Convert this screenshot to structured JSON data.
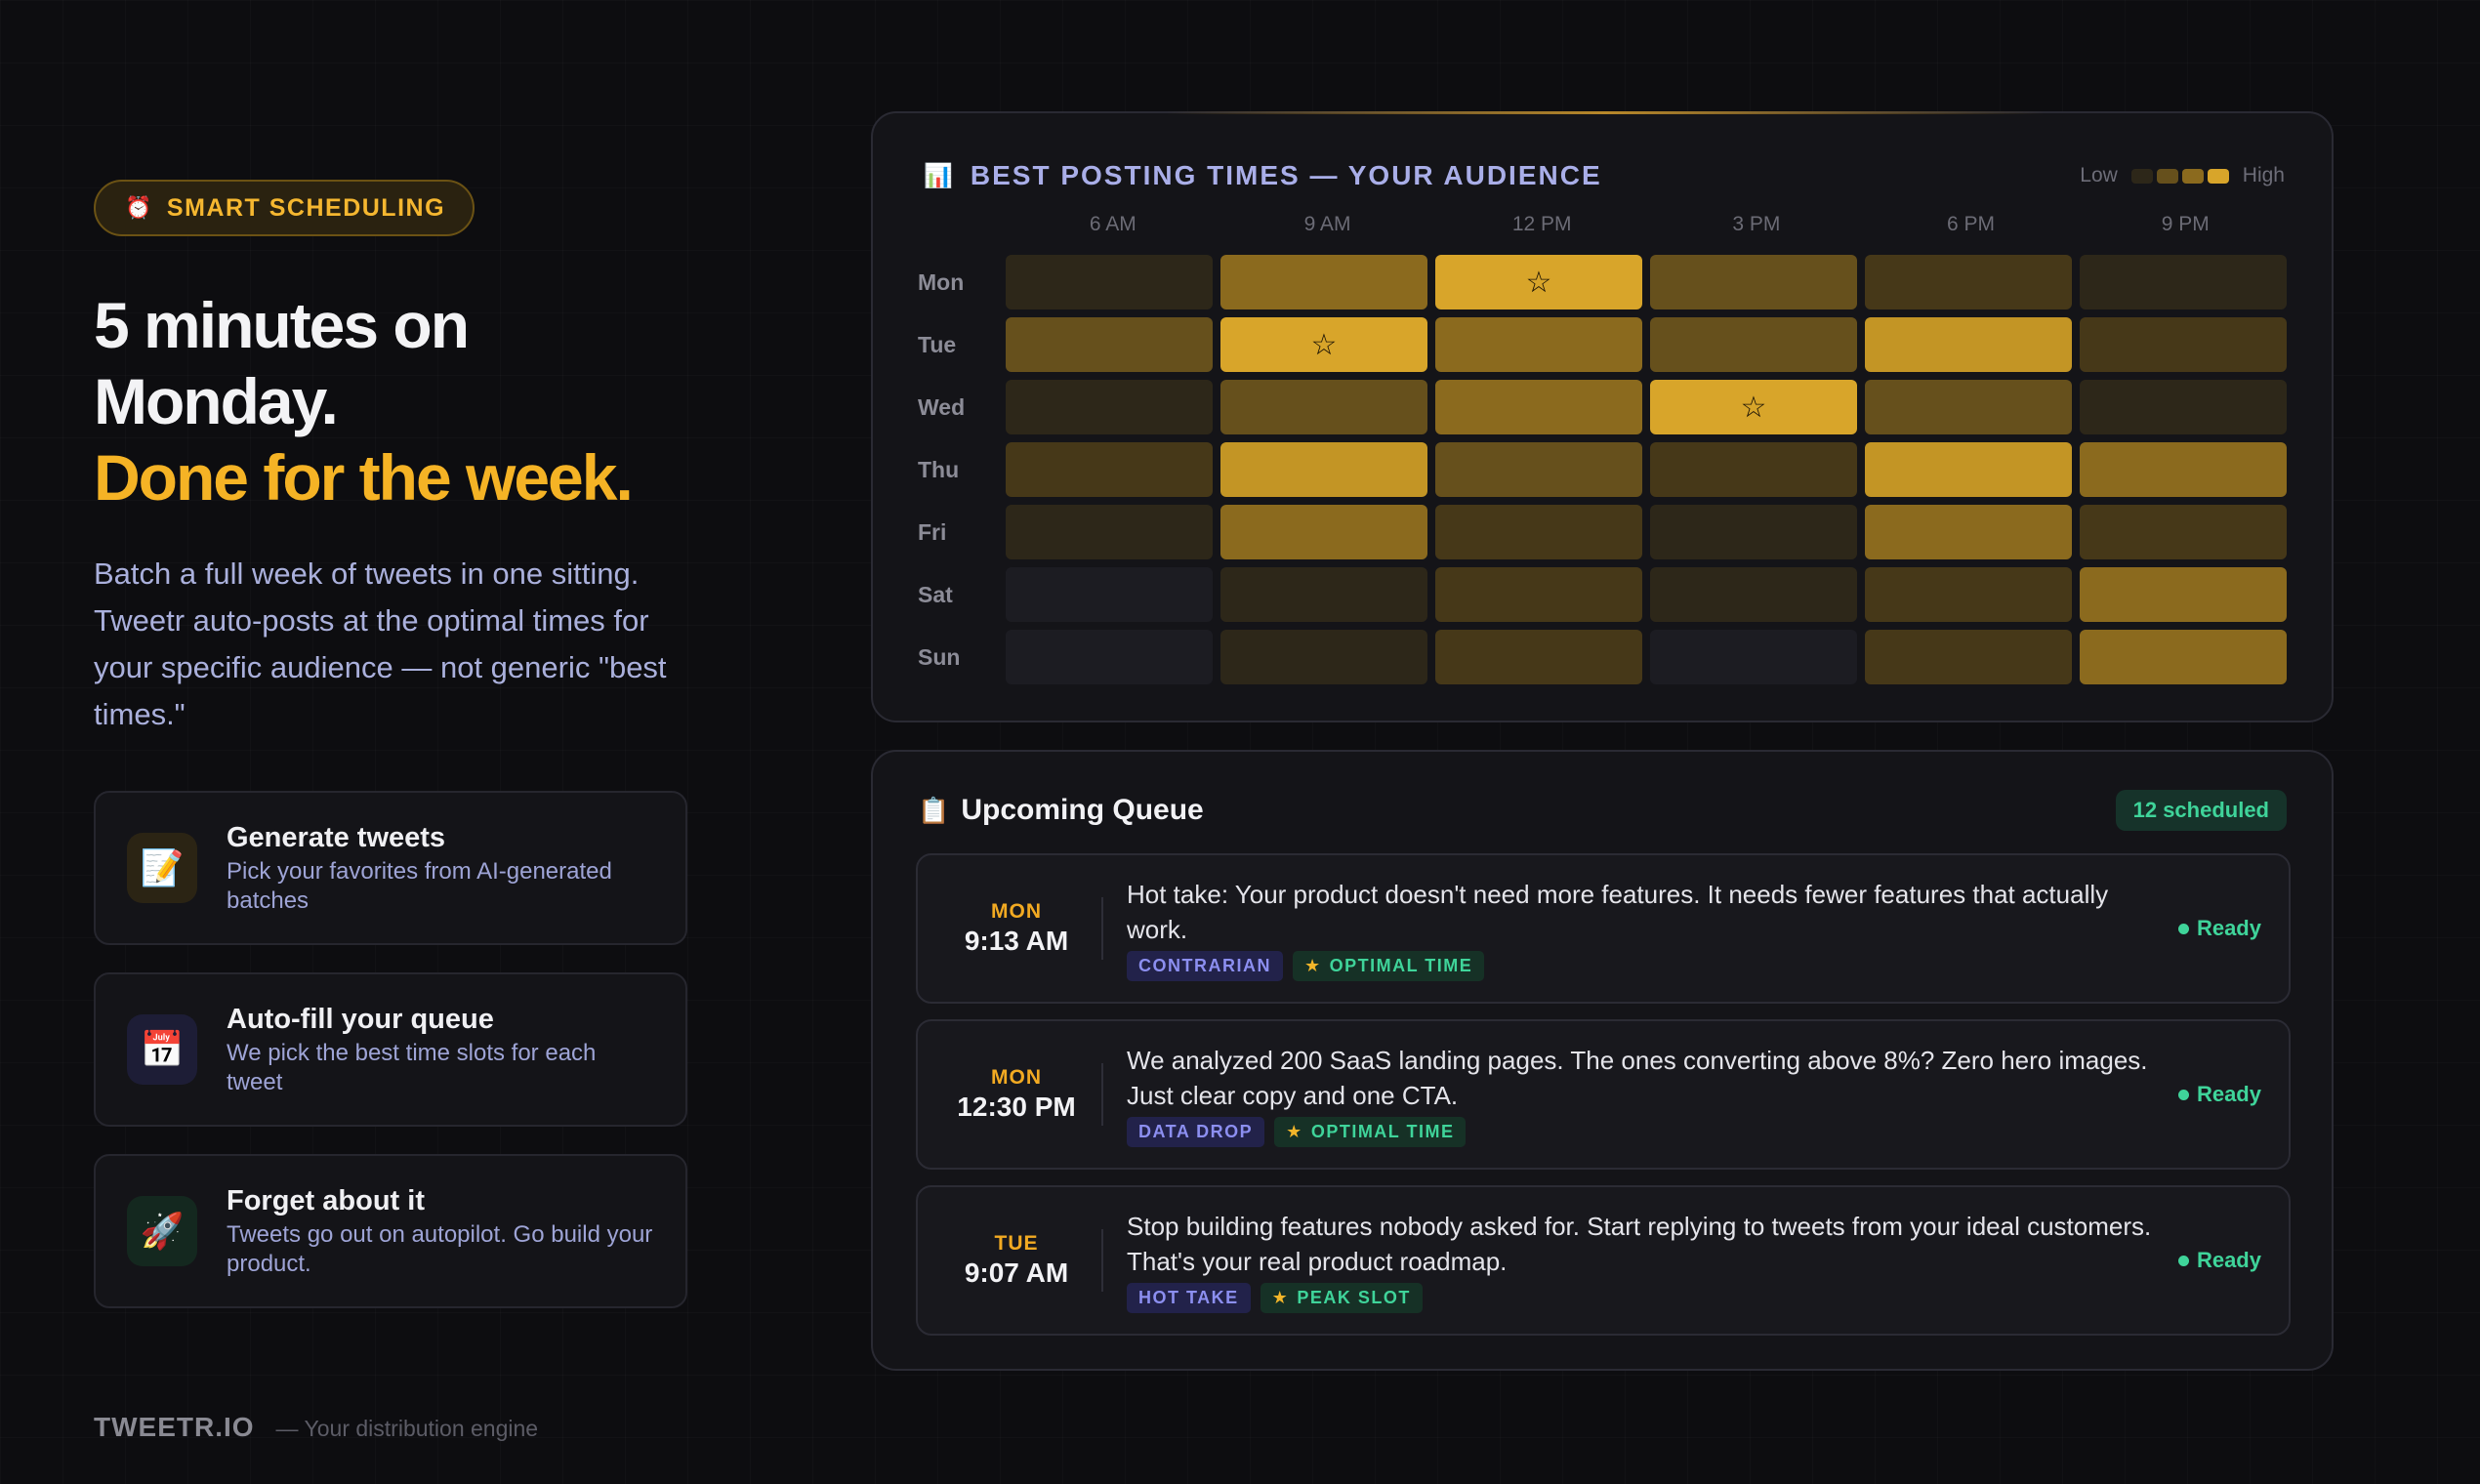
{
  "hero": {
    "badge_icon": "alarm-clock-icon",
    "badge_glyph": "⏰",
    "badge_label": "SMART SCHEDULING",
    "headline_line1": "5 minutes on",
    "headline_line2": "Monday.",
    "headline_line3": "Done for the week.",
    "description": "Batch a full week of tweets in one sitting. Tweetr auto-posts at the optimal times for your specific audience — not generic \"best times.\""
  },
  "features": [
    {
      "icon": "memo-icon",
      "glyph": "📝",
      "title": "Generate tweets",
      "desc": "Pick your favorites from AI-generated batches"
    },
    {
      "icon": "calendar-icon",
      "glyph": "📅",
      "title": "Auto-fill your queue",
      "desc": "We pick the best time slots for each tweet"
    },
    {
      "icon": "rocket-icon",
      "glyph": "🚀",
      "title": "Forget about it",
      "desc": "Tweets go out on autopilot. Go build your product."
    }
  ],
  "footer": {
    "brand": "TWEETR.IO",
    "tagline": "— Your distribution engine"
  },
  "heatmap": {
    "icon": "bar-chart-icon",
    "glyph": "📊",
    "title": "BEST POSTING TIMES — YOUR AUDIENCE",
    "legend_low": "Low",
    "legend_high": "High",
    "hours": [
      "6 AM",
      "9 AM",
      "12 PM",
      "3 PM",
      "6 PM",
      "9 PM"
    ],
    "days": [
      "Mon",
      "Tue",
      "Wed",
      "Thu",
      "Fri",
      "Sat",
      "Sun"
    ],
    "levels": [
      [
        1,
        4,
        6,
        3,
        2,
        1
      ],
      [
        3,
        6,
        4,
        3,
        5,
        2
      ],
      [
        1,
        3,
        4,
        6,
        3,
        1
      ],
      [
        2,
        5,
        3,
        2,
        5,
        4
      ],
      [
        1,
        4,
        2,
        1,
        4,
        2
      ],
      [
        0,
        1,
        2,
        1,
        2,
        4
      ],
      [
        0,
        1,
        2,
        0,
        2,
        4
      ]
    ],
    "stars": [
      [
        0,
        2
      ],
      [
        1,
        1
      ],
      [
        2,
        3
      ]
    ],
    "star_glyph": "☆"
  },
  "queue": {
    "icon": "clipboard-icon",
    "glyph": "📋",
    "title": "Upcoming Queue",
    "count_label": "12 scheduled",
    "items": [
      {
        "day": "MON",
        "time": "9:13 AM",
        "text": "Hot take: Your product doesn't need more features. It needs fewer features that actually work.",
        "category": "CONTRARIAN",
        "slot": "OPTIMAL TIME",
        "status": "Ready"
      },
      {
        "day": "MON",
        "time": "12:30 PM",
        "text": "We analyzed 200 SaaS landing pages. The ones converting above 8%? Zero hero images. Just clear copy and one CTA.",
        "category": "DATA DROP",
        "slot": "OPTIMAL TIME",
        "status": "Ready"
      },
      {
        "day": "TUE",
        "time": "9:07 AM",
        "text": "Stop building features nobody asked for. Start replying to tweets from your ideal customers. That's your real product roadmap.",
        "category": "HOT TAKE",
        "slot": "PEAK SLOT",
        "status": "Ready"
      }
    ]
  }
}
